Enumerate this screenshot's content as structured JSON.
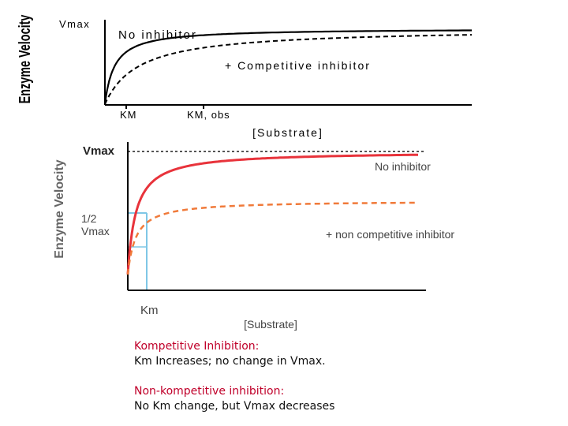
{
  "chart_data": [
    {
      "type": "line",
      "ylabel": "Enzyme Velocity",
      "xlabel": "[Substrate]",
      "y_tick_label": "Vmax",
      "x_tick_labels": [
        "KM",
        "KM, obs"
      ],
      "series": [
        {
          "name": "No inhibitor",
          "style": "solid",
          "color": "#000000",
          "vmax": 1.0,
          "km": 1.0
        },
        {
          "name": "+ Competitive inhibitor",
          "style": "dashed",
          "color": "#000000",
          "vmax": 1.0,
          "km": 3.5
        }
      ]
    },
    {
      "type": "line",
      "ylabel": "Enzyme Velocity",
      "xlabel": "[Substrate]",
      "y_tick_labels": [
        "Vmax",
        "1/2 Vmax"
      ],
      "x_tick_label": "Km",
      "series": [
        {
          "name": "No inhibitor",
          "style": "solid",
          "color": "#e8333b",
          "vmax": 1.0,
          "km": 1.0
        },
        {
          "name": "+ non competitive inhibitor",
          "style": "dashed",
          "color": "#f07a3a",
          "vmax": 0.6,
          "km": 1.0
        }
      ]
    }
  ],
  "caption": {
    "competitive_title": "Kompetitive Inhibition:",
    "competitive_text": "Km Increases; no change in Vmax.",
    "noncompetitive_title": "Non-kompetitive inhibition:",
    "noncompetitive_text": "No Km change, but Vmax decreases"
  },
  "colors": {
    "red_text": "#c0002a",
    "blue_guide": "#7fc7e6"
  }
}
